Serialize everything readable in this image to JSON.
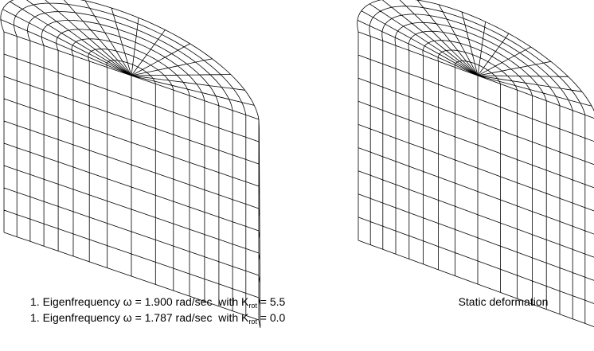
{
  "left_caption": [
    {
      "text": "1. Eigenfrequency ω = 1.900 rad/sec  with K",
      "subscript": "rot",
      "suffix": " = 5.5"
    },
    {
      "text": "1. Eigenfrequency ω = 1.787 rad/sec  with K",
      "subscript": "rot",
      "suffix": " = 0.0"
    }
  ],
  "right_caption": "Static deformation"
}
